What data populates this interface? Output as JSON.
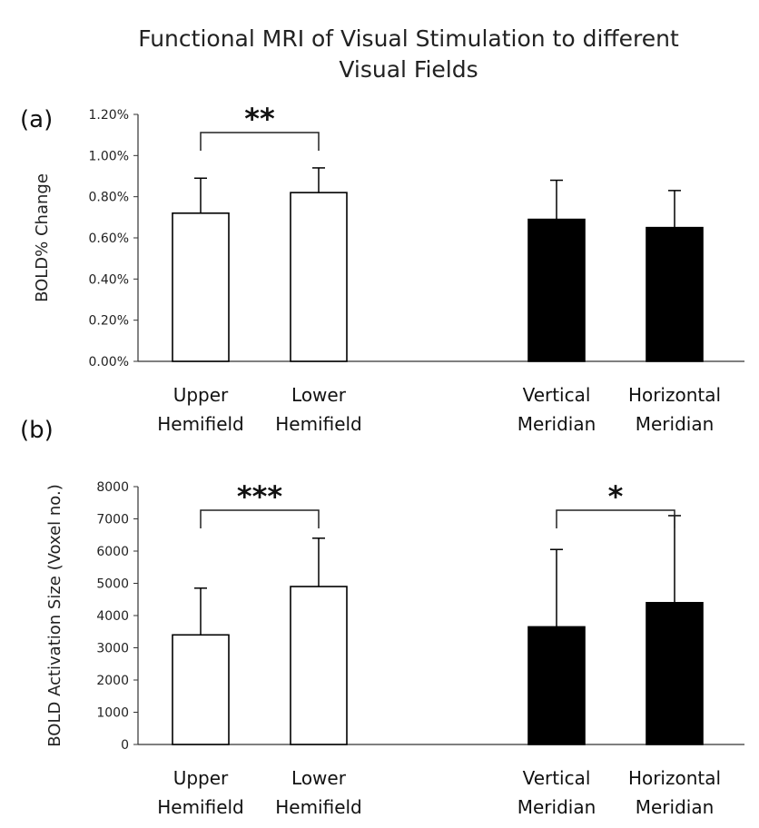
{
  "title_lines": [
    "Functional MRI of Visual Stimulation to different",
    "Visual Fields"
  ],
  "chart_data": [
    {
      "type": "bar",
      "panel_label": "(a)",
      "ylabel": "BOLD% Change",
      "xlabel": "",
      "categories": [
        [
          "Upper",
          "Hemifield"
        ],
        [
          "Lower",
          "Hemifield"
        ],
        [
          "Vertical",
          "Meridian"
        ],
        [
          "Horizontal",
          "Meridian"
        ]
      ],
      "values": [
        0.0072,
        0.0082,
        0.0069,
        0.0065
      ],
      "errors": [
        0.0017,
        0.0012,
        0.0019,
        0.0018
      ],
      "bar_colors": [
        "#ffffff",
        "#ffffff",
        "#000000",
        "#000000"
      ],
      "ylim": [
        0,
        0.012
      ],
      "yticks": [
        0,
        0.002,
        0.004,
        0.006,
        0.008,
        0.01,
        0.012
      ],
      "ytick_labels": [
        "0.00%",
        "0.20%",
        "0.40%",
        "0.60%",
        "0.80%",
        "1.00%",
        "1.20%"
      ],
      "significance": [
        {
          "from": 0,
          "to": 1,
          "label": "**"
        }
      ]
    },
    {
      "type": "bar",
      "panel_label": "(b)",
      "ylabel": "BOLD Activation Size (Voxel no.)",
      "xlabel": "",
      "categories": [
        [
          "Upper",
          "Hemifield"
        ],
        [
          "Lower",
          "Hemifield"
        ],
        [
          "Vertical",
          "Meridian"
        ],
        [
          "Horizontal",
          "Meridian"
        ]
      ],
      "values": [
        3400,
        4900,
        3650,
        4400
      ],
      "errors": [
        1450,
        1500,
        2400,
        2700
      ],
      "bar_colors": [
        "#ffffff",
        "#ffffff",
        "#000000",
        "#000000"
      ],
      "ylim": [
        0,
        8000
      ],
      "yticks": [
        0,
        1000,
        2000,
        3000,
        4000,
        5000,
        6000,
        7000,
        8000
      ],
      "ytick_labels": [
        "0",
        "1000",
        "2000",
        "3000",
        "4000",
        "5000",
        "6000",
        "7000",
        "8000"
      ],
      "significance": [
        {
          "from": 0,
          "to": 1,
          "label": "***"
        },
        {
          "from": 2,
          "to": 3,
          "label": "*"
        }
      ]
    }
  ]
}
